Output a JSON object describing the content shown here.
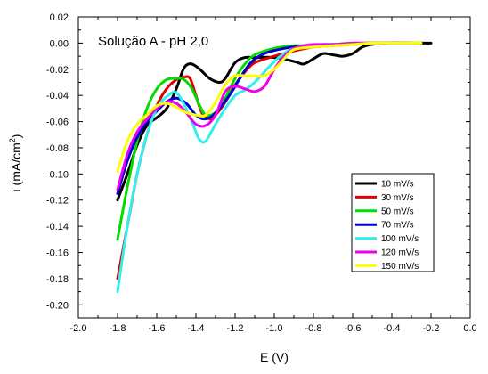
{
  "chart_data": {
    "type": "line",
    "annotation": "Solução A - pH 2,0",
    "xlabel": "E (V)",
    "ylabel_main": "i (mA/cm",
    "ylabel_sup": "2",
    "ylabel_close": ")",
    "xlim": [
      -2.0,
      0.0
    ],
    "ylim": [
      -0.21,
      0.02
    ],
    "xticks": [
      -2.0,
      -1.8,
      -1.6,
      -1.4,
      -1.2,
      -1.0,
      -0.8,
      -0.6,
      -0.4,
      -0.2,
      0.0
    ],
    "xtick_labels": [
      "-2.0",
      "-1.8",
      "-1.6",
      "-1.4",
      "-1.2",
      "-1.0",
      "-0.8",
      "-0.6",
      "-0.4",
      "-0.2",
      "0.0"
    ],
    "yticks": [
      0.02,
      0.0,
      -0.02,
      -0.04,
      -0.06,
      -0.08,
      -0.1,
      -0.12,
      -0.14,
      -0.16,
      -0.18,
      -0.2
    ],
    "ytick_labels": [
      "0.02",
      "0.00",
      "-0.02",
      "-0.04",
      "-0.06",
      "-0.08",
      "-0.10",
      "-0.12",
      "-0.14",
      "-0.16",
      "-0.18",
      "-0.20"
    ],
    "grid": false,
    "legend_position": "right",
    "series": [
      {
        "name": "10 mV/s",
        "color": "#000000",
        "x": [
          -1.8,
          -1.75,
          -1.7,
          -1.65,
          -1.6,
          -1.55,
          -1.5,
          -1.47,
          -1.45,
          -1.42,
          -1.38,
          -1.33,
          -1.28,
          -1.25,
          -1.2,
          -1.15,
          -1.1,
          -1.0,
          -0.9,
          -0.85,
          -0.8,
          -0.75,
          -0.7,
          -0.65,
          -0.6,
          -0.55,
          -0.5,
          -0.4,
          -0.3,
          -0.2
        ],
        "y": [
          -0.12,
          -0.1,
          -0.078,
          -0.063,
          -0.057,
          -0.05,
          -0.035,
          -0.022,
          -0.017,
          -0.016,
          -0.02,
          -0.027,
          -0.03,
          -0.027,
          -0.015,
          -0.011,
          -0.011,
          -0.011,
          -0.014,
          -0.016,
          -0.012,
          -0.008,
          -0.009,
          -0.01,
          -0.008,
          -0.003,
          -0.001,
          0.0,
          0.0,
          0.0
        ]
      },
      {
        "name": "30 mV/s",
        "color": "#e00000",
        "x": [
          -1.8,
          -1.75,
          -1.7,
          -1.65,
          -1.6,
          -1.55,
          -1.5,
          -1.46,
          -1.43,
          -1.4,
          -1.37,
          -1.33,
          -1.3,
          -1.25,
          -1.2,
          -1.15,
          -1.1,
          -1.0,
          -0.9,
          -0.8,
          -0.7,
          -0.6,
          -0.5,
          -0.4,
          -0.3
        ],
        "y": [
          -0.18,
          -0.14,
          -0.1,
          -0.07,
          -0.048,
          -0.035,
          -0.028,
          -0.026,
          -0.027,
          -0.04,
          -0.053,
          -0.058,
          -0.055,
          -0.045,
          -0.032,
          -0.022,
          -0.015,
          -0.01,
          -0.006,
          -0.003,
          -0.002,
          -0.001,
          0.0,
          0.0,
          0.0
        ]
      },
      {
        "name": "50 mV/s",
        "color": "#00dd00",
        "x": [
          -1.8,
          -1.75,
          -1.7,
          -1.65,
          -1.6,
          -1.55,
          -1.5,
          -1.46,
          -1.42,
          -1.38,
          -1.35,
          -1.3,
          -1.25,
          -1.2,
          -1.15,
          -1.1,
          -1.0,
          -0.9,
          -0.8,
          -0.7,
          -0.6,
          -0.5,
          -0.4,
          -0.3
        ],
        "y": [
          -0.15,
          -0.11,
          -0.075,
          -0.05,
          -0.035,
          -0.028,
          -0.027,
          -0.028,
          -0.035,
          -0.048,
          -0.055,
          -0.053,
          -0.042,
          -0.027,
          -0.016,
          -0.009,
          -0.004,
          -0.002,
          -0.002,
          -0.001,
          -0.001,
          0.0,
          0.0,
          0.0
        ]
      },
      {
        "name": "70 mV/s",
        "color": "#0000cc",
        "x": [
          -1.8,
          -1.75,
          -1.7,
          -1.65,
          -1.6,
          -1.55,
          -1.5,
          -1.45,
          -1.4,
          -1.36,
          -1.32,
          -1.28,
          -1.22,
          -1.18,
          -1.12,
          -1.05,
          -0.95,
          -0.85,
          -0.75,
          -0.65,
          -0.55,
          -0.45,
          -0.35
        ],
        "y": [
          -0.115,
          -0.09,
          -0.072,
          -0.06,
          -0.052,
          -0.045,
          -0.042,
          -0.046,
          -0.055,
          -0.058,
          -0.056,
          -0.05,
          -0.038,
          -0.028,
          -0.015,
          -0.008,
          -0.004,
          -0.002,
          -0.001,
          -0.001,
          0.0,
          0.0,
          0.0
        ]
      },
      {
        "name": "100 mV/s",
        "color": "#33eeee",
        "x": [
          -1.8,
          -1.75,
          -1.7,
          -1.65,
          -1.6,
          -1.55,
          -1.5,
          -1.45,
          -1.4,
          -1.38,
          -1.35,
          -1.3,
          -1.25,
          -1.2,
          -1.15,
          -1.1,
          -1.05,
          -1.0,
          -0.95,
          -0.9,
          -0.8,
          -0.7,
          -0.6,
          -0.5,
          -0.4,
          -0.3
        ],
        "y": [
          -0.19,
          -0.14,
          -0.1,
          -0.07,
          -0.05,
          -0.041,
          -0.038,
          -0.05,
          -0.068,
          -0.074,
          -0.075,
          -0.062,
          -0.05,
          -0.04,
          -0.036,
          -0.03,
          -0.022,
          -0.014,
          -0.008,
          -0.004,
          -0.002,
          -0.001,
          0.0,
          0.0,
          0.0,
          0.0
        ]
      },
      {
        "name": "120 mV/s",
        "color": "#ee00ee",
        "x": [
          -1.8,
          -1.75,
          -1.7,
          -1.65,
          -1.6,
          -1.55,
          -1.5,
          -1.45,
          -1.4,
          -1.35,
          -1.3,
          -1.25,
          -1.2,
          -1.15,
          -1.1,
          -1.05,
          -1.0,
          -0.95,
          -0.9,
          -0.85,
          -0.8,
          -0.7,
          -0.6,
          -0.5,
          -0.4,
          -0.3
        ],
        "y": [
          -0.112,
          -0.085,
          -0.068,
          -0.058,
          -0.05,
          -0.045,
          -0.046,
          -0.053,
          -0.062,
          -0.063,
          -0.055,
          -0.037,
          -0.033,
          -0.035,
          -0.037,
          -0.033,
          -0.02,
          -0.01,
          -0.004,
          -0.002,
          -0.001,
          -0.001,
          0.0,
          0.0,
          0.0,
          0.0
        ]
      },
      {
        "name": "150 mV/s",
        "color": "#ffff00",
        "x": [
          -1.8,
          -1.75,
          -1.7,
          -1.65,
          -1.6,
          -1.55,
          -1.5,
          -1.45,
          -1.4,
          -1.35,
          -1.3,
          -1.25,
          -1.2,
          -1.15,
          -1.1,
          -1.05,
          -1.0,
          -0.95,
          -0.9,
          -0.8,
          -0.7,
          -0.6,
          -0.5,
          -0.4,
          -0.3,
          -0.25
        ],
        "y": [
          -0.098,
          -0.075,
          -0.062,
          -0.055,
          -0.048,
          -0.046,
          -0.049,
          -0.053,
          -0.055,
          -0.055,
          -0.045,
          -0.032,
          -0.025,
          -0.025,
          -0.025,
          -0.025,
          -0.02,
          -0.012,
          -0.005,
          -0.003,
          -0.002,
          -0.001,
          0.0,
          0.0,
          0.0,
          0.0
        ]
      }
    ]
  }
}
